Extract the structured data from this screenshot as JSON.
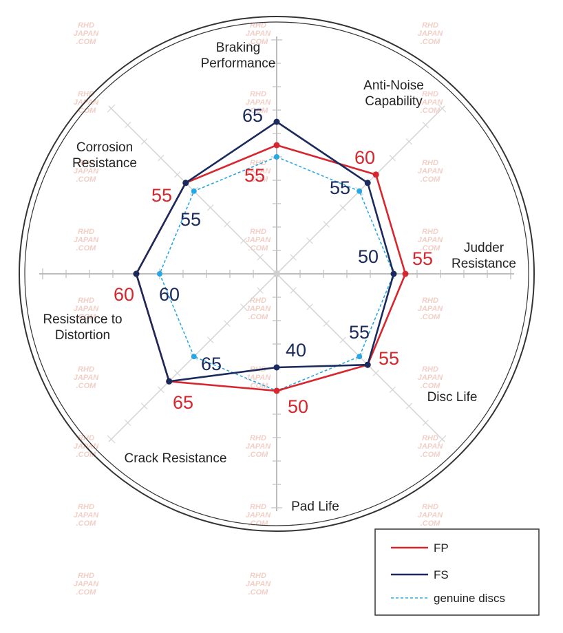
{
  "chart_data": {
    "type": "radar",
    "axes": [
      "Braking Performance",
      "Anti-Noise Capability",
      "Judder Resistance",
      "Disc Life",
      "Pad Life",
      "Crack Resistance",
      "Resistance to Distortion",
      "Corrosion Resistance"
    ],
    "axis_label_lines": [
      [
        "Braking",
        "Performance"
      ],
      [
        "Anti-Noise",
        "Capability"
      ],
      [
        "Judder",
        "Resistance"
      ],
      [
        "Disc Life"
      ],
      [
        "Pad Life"
      ],
      [
        "Crack Resistance"
      ],
      [
        "Resistance to",
        "Distortion"
      ],
      [
        "Corrosion",
        "Resistance"
      ]
    ],
    "scale_max": 100,
    "series": [
      {
        "name": "FP",
        "values": [
          55,
          60,
          55,
          55,
          50,
          65,
          60,
          55
        ],
        "color": "#d7262e",
        "style": "solid"
      },
      {
        "name": "FS",
        "values": [
          65,
          55,
          50,
          55,
          40,
          65,
          60,
          55
        ],
        "color": "#1b2a5c",
        "style": "solid"
      },
      {
        "name": "genuine discs",
        "values": [
          50,
          50,
          50,
          50,
          50,
          50,
          50,
          50
        ],
        "color": "#2aa7e0",
        "style": "dashed"
      }
    ],
    "value_labels": [
      {
        "series": "FS",
        "axis": "Braking Performance",
        "text": "65"
      },
      {
        "series": "FP",
        "axis": "Braking Performance",
        "text": "55"
      },
      {
        "series": "FP",
        "axis": "Anti-Noise Capability",
        "text": "60"
      },
      {
        "series": "FS",
        "axis": "Anti-Noise Capability",
        "text": "55"
      },
      {
        "series": "FP",
        "axis": "Judder Resistance",
        "text": "55"
      },
      {
        "series": "FS",
        "axis": "Judder Resistance",
        "text": "50"
      },
      {
        "series": "FS",
        "axis": "Disc Life",
        "text": "55"
      },
      {
        "series": "FP",
        "axis": "Disc Life",
        "text": "55"
      },
      {
        "series": "FS",
        "axis": "Pad Life",
        "text": "40"
      },
      {
        "series": "FP",
        "axis": "Pad Life",
        "text": "50"
      },
      {
        "series": "FS",
        "axis": "Crack Resistance",
        "text": "65"
      },
      {
        "series": "FP",
        "axis": "Crack Resistance",
        "text": "65"
      },
      {
        "series": "FP",
        "axis": "Resistance to Distortion",
        "text": "60"
      },
      {
        "series": "FS",
        "axis": "Resistance to Distortion",
        "text": "60"
      },
      {
        "series": "FP",
        "axis": "Corrosion Resistance",
        "text": "55"
      },
      {
        "series": "FS",
        "axis": "Corrosion Resistance",
        "text": "55"
      }
    ],
    "legend": {
      "position": "bottom-right",
      "items": [
        "FP",
        "FS",
        "genuine discs"
      ]
    },
    "grid": true
  },
  "watermark": {
    "lines": [
      "RHD",
      "JAPAN",
      ".COM"
    ]
  }
}
